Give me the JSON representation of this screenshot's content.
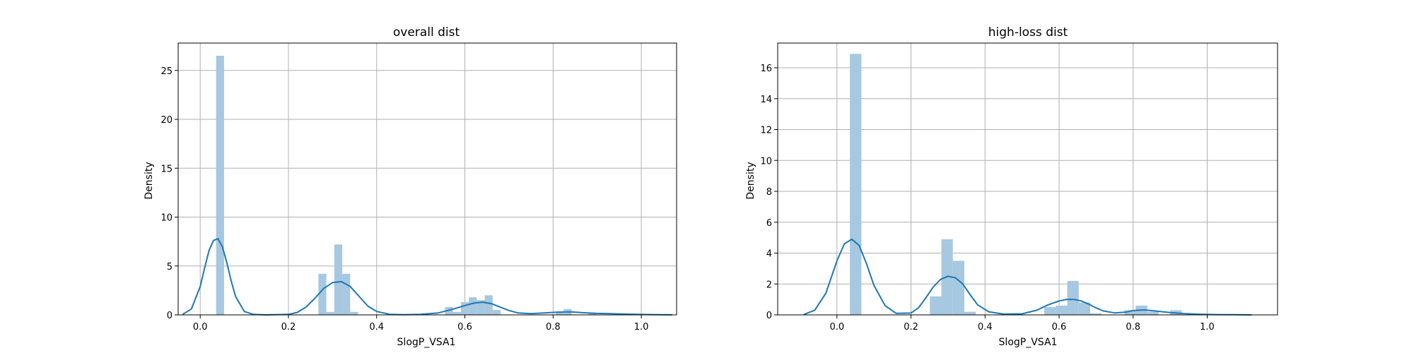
{
  "chart_data": [
    {
      "type": "bar",
      "title": "overall dist",
      "xlabel": "SlogP_VSA1",
      "ylabel": "Density",
      "xlim": [
        -0.05,
        1.08
      ],
      "ylim": [
        0,
        27.8
      ],
      "xticks": [
        0.0,
        0.2,
        0.4,
        0.6,
        0.8,
        1.0
      ],
      "xtick_labels": [
        "0.0",
        "0.2",
        "0.4",
        "0.6",
        "0.8",
        "1.0"
      ],
      "yticks": [
        0,
        5,
        10,
        15,
        20,
        25
      ],
      "ytick_labels": [
        "0",
        "5",
        "10",
        "15",
        "20",
        "25"
      ],
      "grid": true,
      "bar_color": "#a6c8e0",
      "line_color": "#1f77b4",
      "histogram": [
        {
          "x0": 0.036,
          "x1": 0.054,
          "density": 26.5
        },
        {
          "x0": 0.268,
          "x1": 0.286,
          "density": 4.2
        },
        {
          "x0": 0.286,
          "x1": 0.304,
          "density": 0.3
        },
        {
          "x0": 0.304,
          "x1": 0.322,
          "density": 7.2
        },
        {
          "x0": 0.322,
          "x1": 0.34,
          "density": 4.2
        },
        {
          "x0": 0.34,
          "x1": 0.358,
          "density": 0.3
        },
        {
          "x0": 0.555,
          "x1": 0.573,
          "density": 0.8
        },
        {
          "x0": 0.573,
          "x1": 0.591,
          "density": 0.3
        },
        {
          "x0": 0.591,
          "x1": 0.609,
          "density": 1.3
        },
        {
          "x0": 0.609,
          "x1": 0.627,
          "density": 1.8
        },
        {
          "x0": 0.627,
          "x1": 0.645,
          "density": 1.5
        },
        {
          "x0": 0.645,
          "x1": 0.663,
          "density": 2.0
        },
        {
          "x0": 0.663,
          "x1": 0.681,
          "density": 0.5
        },
        {
          "x0": 0.806,
          "x1": 0.824,
          "density": 0.3
        },
        {
          "x0": 0.824,
          "x1": 0.842,
          "density": 0.6
        },
        {
          "x0": 0.88,
          "x1": 0.898,
          "density": 0.2
        }
      ],
      "kde": {
        "x": [
          -0.04,
          -0.02,
          0.0,
          0.01,
          0.02,
          0.03,
          0.04,
          0.05,
          0.06,
          0.07,
          0.08,
          0.1,
          0.12,
          0.15,
          0.2,
          0.22,
          0.24,
          0.26,
          0.28,
          0.3,
          0.32,
          0.34,
          0.36,
          0.38,
          0.4,
          0.43,
          0.46,
          0.5,
          0.54,
          0.57,
          0.6,
          0.62,
          0.64,
          0.66,
          0.68,
          0.7,
          0.72,
          0.75,
          0.78,
          0.81,
          0.84,
          0.87,
          0.9,
          0.93,
          0.96,
          1.0,
          1.04,
          1.07
        ],
        "y": [
          0.05,
          0.6,
          2.9,
          4.8,
          6.6,
          7.6,
          7.8,
          7.0,
          5.4,
          3.5,
          1.9,
          0.35,
          0.05,
          0.0,
          0.05,
          0.25,
          0.8,
          1.7,
          2.7,
          3.3,
          3.4,
          2.9,
          1.9,
          0.9,
          0.35,
          0.06,
          0.02,
          0.05,
          0.2,
          0.55,
          0.95,
          1.2,
          1.3,
          1.15,
          0.8,
          0.45,
          0.2,
          0.12,
          0.2,
          0.28,
          0.3,
          0.22,
          0.15,
          0.12,
          0.08,
          0.04,
          0.02,
          0.01
        ]
      }
    },
    {
      "type": "bar",
      "title": "high-loss dist",
      "xlabel": "SlogP_VSA1",
      "ylabel": "Density",
      "xlim": [
        -0.16,
        1.19
      ],
      "ylim": [
        0,
        17.6
      ],
      "xticks": [
        0.0,
        0.2,
        0.4,
        0.6,
        0.8,
        1.0
      ],
      "xtick_labels": [
        "0.0",
        "0.2",
        "0.4",
        "0.6",
        "0.8",
        "1.0"
      ],
      "yticks": [
        0,
        2,
        4,
        6,
        8,
        10,
        12,
        14,
        16
      ],
      "ytick_labels": [
        "0",
        "2",
        "4",
        "6",
        "8",
        "10",
        "12",
        "14",
        "16"
      ],
      "grid": true,
      "bar_color": "#a6c8e0",
      "line_color": "#1f77b4",
      "histogram": [
        {
          "x0": 0.035,
          "x1": 0.066,
          "density": 16.9
        },
        {
          "x0": 0.251,
          "x1": 0.282,
          "density": 1.2
        },
        {
          "x0": 0.282,
          "x1": 0.313,
          "density": 4.9
        },
        {
          "x0": 0.313,
          "x1": 0.344,
          "density": 3.5
        },
        {
          "x0": 0.344,
          "x1": 0.375,
          "density": 0.2
        },
        {
          "x0": 0.56,
          "x1": 0.591,
          "density": 0.5
        },
        {
          "x0": 0.591,
          "x1": 0.622,
          "density": 0.6
        },
        {
          "x0": 0.622,
          "x1": 0.653,
          "density": 2.2
        },
        {
          "x0": 0.653,
          "x1": 0.684,
          "density": 0.8
        },
        {
          "x0": 0.684,
          "x1": 0.715,
          "density": 0.1
        },
        {
          "x0": 0.776,
          "x1": 0.807,
          "density": 0.3
        },
        {
          "x0": 0.807,
          "x1": 0.838,
          "density": 0.6
        },
        {
          "x0": 0.838,
          "x1": 0.869,
          "density": 0.2
        },
        {
          "x0": 0.9,
          "x1": 0.931,
          "density": 0.3
        }
      ],
      "kde": {
        "x": [
          -0.09,
          -0.06,
          -0.03,
          0.0,
          0.02,
          0.04,
          0.06,
          0.08,
          0.1,
          0.13,
          0.16,
          0.2,
          0.22,
          0.24,
          0.26,
          0.28,
          0.3,
          0.32,
          0.34,
          0.36,
          0.38,
          0.41,
          0.45,
          0.5,
          0.54,
          0.57,
          0.6,
          0.62,
          0.64,
          0.66,
          0.68,
          0.7,
          0.72,
          0.75,
          0.78,
          0.8,
          0.83,
          0.86,
          0.9,
          0.94,
          0.98,
          1.03,
          1.08,
          1.12
        ],
        "y": [
          0.02,
          0.3,
          1.4,
          3.5,
          4.6,
          4.9,
          4.5,
          3.3,
          1.9,
          0.6,
          0.1,
          0.12,
          0.45,
          1.1,
          1.8,
          2.3,
          2.5,
          2.4,
          2.0,
          1.3,
          0.65,
          0.2,
          0.05,
          0.07,
          0.3,
          0.65,
          0.9,
          1.0,
          1.0,
          0.9,
          0.7,
          0.45,
          0.25,
          0.13,
          0.18,
          0.28,
          0.32,
          0.25,
          0.15,
          0.08,
          0.04,
          0.02,
          0.01,
          0.0
        ]
      }
    }
  ]
}
